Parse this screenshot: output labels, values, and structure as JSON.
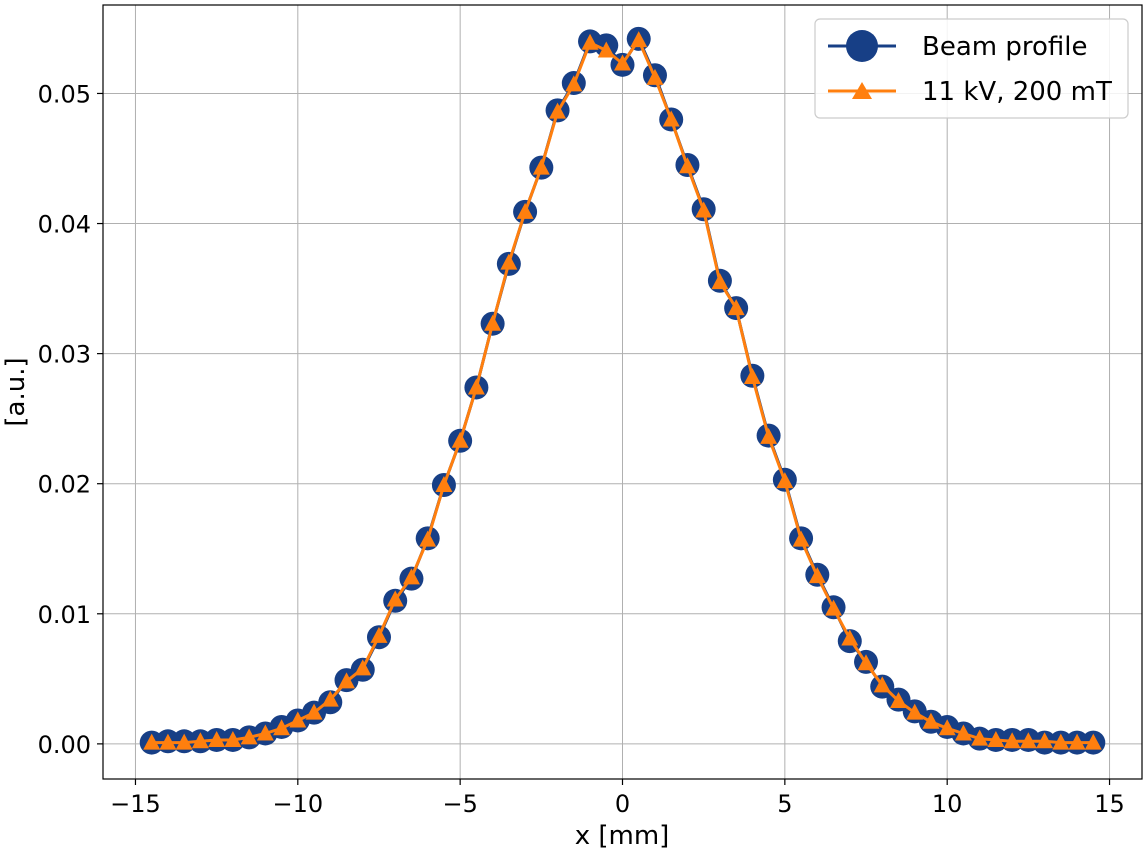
{
  "chart_data": {
    "type": "line",
    "title": "",
    "xlabel": "x [mm]",
    "ylabel": "[a.u.]",
    "xlim": [
      -16,
      16
    ],
    "ylim": [
      -0.0027,
      0.0568
    ],
    "xticks": [
      -15,
      -10,
      -5,
      0,
      5,
      10,
      15
    ],
    "xtick_labels": [
      "−15",
      "−10",
      "−5",
      "0",
      "5",
      "10",
      "15"
    ],
    "yticks": [
      0.0,
      0.01,
      0.02,
      0.03,
      0.04,
      0.05
    ],
    "ytick_labels": [
      "0.00",
      "0.01",
      "0.02",
      "0.03",
      "0.04",
      "0.05"
    ],
    "grid": true,
    "legend_position": "top-right",
    "x": [
      -14.5,
      -14.0,
      -13.5,
      -13.0,
      -12.5,
      -12.0,
      -11.5,
      -11.0,
      -10.5,
      -10.0,
      -9.5,
      -9.0,
      -8.5,
      -8.0,
      -7.5,
      -7.0,
      -6.5,
      -6.0,
      -5.5,
      -5.0,
      -4.5,
      -4.0,
      -3.5,
      -3.0,
      -2.5,
      -2.0,
      -1.5,
      -1.0,
      -0.5,
      0.0,
      0.5,
      1.0,
      1.5,
      2.0,
      2.5,
      3.0,
      3.5,
      4.0,
      4.5,
      5.0,
      5.5,
      6.0,
      6.5,
      7.0,
      7.5,
      8.0,
      8.5,
      9.0,
      9.5,
      10.0,
      10.5,
      11.0,
      11.5,
      12.0,
      12.5,
      13.0,
      13.5,
      14.0,
      14.5
    ],
    "series": [
      {
        "name": "Beam profile",
        "color": "#173f86",
        "marker": "circle",
        "values": [
          0.0001,
          0.0002,
          0.0002,
          0.0002,
          0.0003,
          0.0003,
          0.0005,
          0.0008,
          0.0013,
          0.0018,
          0.0024,
          0.0032,
          0.0049,
          0.0057,
          0.0082,
          0.011,
          0.0127,
          0.0158,
          0.0199,
          0.0233,
          0.0274,
          0.0323,
          0.0369,
          0.0409,
          0.0443,
          0.0487,
          0.0508,
          0.054,
          0.0537,
          0.0522,
          0.0542,
          0.0514,
          0.048,
          0.0445,
          0.0411,
          0.0356,
          0.0335,
          0.0283,
          0.0237,
          0.0203,
          0.0158,
          0.013,
          0.0105,
          0.0079,
          0.0063,
          0.0044,
          0.0034,
          0.0025,
          0.0017,
          0.0013,
          0.0008,
          0.0004,
          0.0003,
          0.0003,
          0.0003,
          0.0001,
          0.0001,
          0.0001,
          0.0001
        ]
      },
      {
        "name": "11 kV, 200 mT",
        "color": "#ff7f0e",
        "marker": "triangle",
        "values": [
          0.0001,
          0.0001,
          0.0001,
          0.0002,
          0.0003,
          0.0003,
          0.0005,
          0.0008,
          0.0012,
          0.0018,
          0.0024,
          0.0034,
          0.0048,
          0.0058,
          0.0083,
          0.0111,
          0.0128,
          0.0157,
          0.0199,
          0.0233,
          0.0274,
          0.0323,
          0.037,
          0.0409,
          0.0443,
          0.0486,
          0.0507,
          0.0539,
          0.0533,
          0.0523,
          0.0541,
          0.0512,
          0.048,
          0.0444,
          0.041,
          0.0355,
          0.0335,
          0.0282,
          0.0236,
          0.0202,
          0.0157,
          0.0129,
          0.0104,
          0.0081,
          0.0062,
          0.0045,
          0.0033,
          0.0024,
          0.0017,
          0.0012,
          0.0008,
          0.0004,
          0.0003,
          0.0002,
          0.0002,
          0.0002,
          0.0001,
          0.0001,
          0.0001
        ]
      }
    ]
  }
}
